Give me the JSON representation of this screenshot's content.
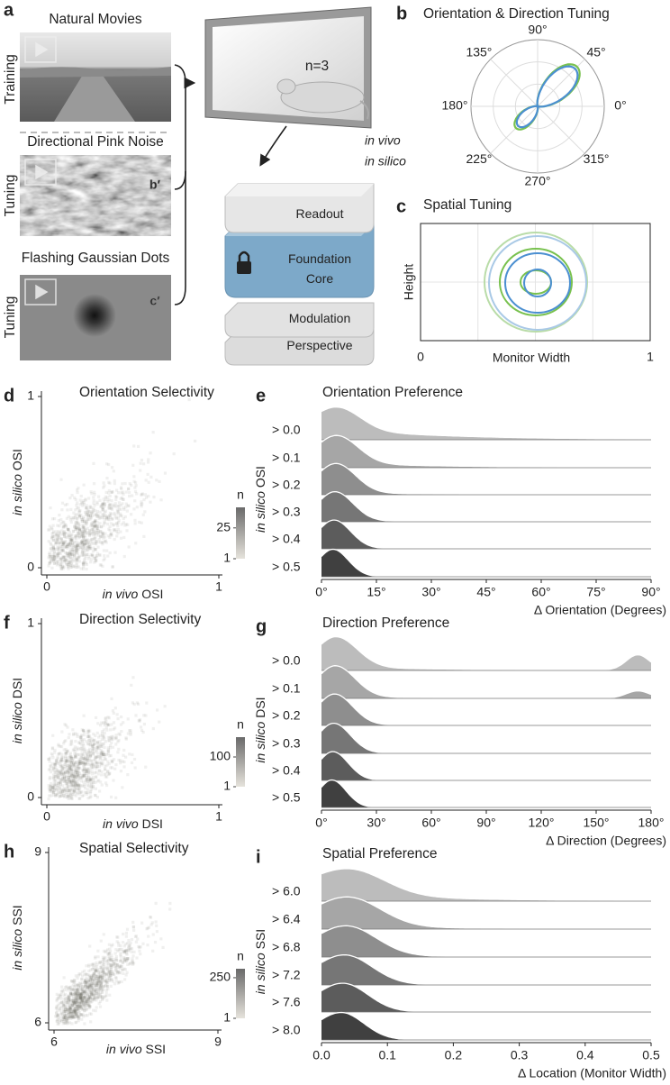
{
  "panel_a": {
    "letter": "a",
    "movies": [
      {
        "title": "Natural Movies",
        "side": "Training"
      },
      {
        "title": "Directional Pink Noise",
        "side": "Tuning",
        "tag": "b′"
      },
      {
        "title": "Flashing Gaussian Dots",
        "side": "Tuning",
        "tag": "c′"
      }
    ],
    "mouse_label": "n=3",
    "legend": [
      {
        "name": "in vivo",
        "color": "#78c14e"
      },
      {
        "name": "in silico",
        "color": "#4b8fd1"
      }
    ],
    "model_layers": [
      "Readout",
      "Foundation Core",
      "Modulation",
      "Perspective"
    ]
  },
  "panel_b": {
    "letter": "b",
    "title": "Orientation & Direction Tuning",
    "angle_ticks": [
      {
        "value": 90,
        "label": "90°"
      },
      {
        "value": 45,
        "label": "45°"
      },
      {
        "value": 0,
        "label": "0°"
      },
      {
        "value": 315,
        "label": "315°"
      },
      {
        "value": 270,
        "label": "270°"
      },
      {
        "value": 225,
        "label": "225°"
      },
      {
        "value": 180,
        "label": "180°"
      },
      {
        "value": 135,
        "label": "135°"
      }
    ]
  },
  "panel_c": {
    "letter": "c",
    "title": "Spatial Tuning",
    "ylabel": "Height",
    "xlabel": "Monitor Width",
    "xticks": [
      0,
      1
    ]
  },
  "chart_data": [
    {
      "type": "density",
      "letter": "d",
      "title": "Orientation Selectivity",
      "xlim": [
        0,
        1
      ],
      "ylim": [
        0,
        1
      ],
      "xticks": [
        0,
        1
      ],
      "yticks": [
        0,
        1
      ],
      "xlabel": [
        "in vivo",
        "OSI"
      ],
      "ylabel": [
        "in silico",
        "OSI"
      ],
      "colorbar": {
        "label": "n",
        "lim": [
          1,
          41
        ],
        "ticks": [
          1,
          25
        ]
      }
    },
    {
      "type": "ridgeline",
      "letter": "e",
      "title": "Orientation Preference",
      "categories": [
        "> 0.0",
        "> 0.1",
        "> 0.2",
        "> 0.3",
        "> 0.4",
        "> 0.5"
      ],
      "colors": [
        "#bcbcbc",
        "#a6a6a6",
        "#8e8e8e",
        "#767676",
        "#5c5c5c",
        "#404040"
      ],
      "xlim": [
        0,
        90
      ],
      "xticks": [
        {
          "value": 0,
          "label": "0°"
        },
        {
          "value": 15,
          "label": "15°"
        },
        {
          "value": 30,
          "label": "30°"
        },
        {
          "value": 45,
          "label": "45°"
        },
        {
          "value": 60,
          "label": "60°"
        },
        {
          "value": 75,
          "label": "75°"
        },
        {
          "value": 90,
          "label": "90°"
        }
      ],
      "xlabel": "Δ Orientation (Degrees)",
      "ylabel": [
        "in silico",
        "OSI"
      ]
    },
    {
      "type": "density",
      "letter": "f",
      "title": "Direction Selectivity",
      "xlim": [
        0,
        1
      ],
      "ylim": [
        0,
        1
      ],
      "xticks": [
        0,
        1
      ],
      "yticks": [
        0,
        1
      ],
      "xlabel": [
        "in vivo",
        "DSI"
      ],
      "ylabel": [
        "in silico",
        "DSI"
      ],
      "colorbar": {
        "label": "n",
        "lim": [
          1,
          166
        ],
        "ticks": [
          1,
          100
        ]
      }
    },
    {
      "type": "ridgeline",
      "letter": "g",
      "title": "Direction Preference",
      "categories": [
        "> 0.0",
        "> 0.1",
        "> 0.2",
        "> 0.3",
        "> 0.4",
        "> 0.5"
      ],
      "colors": [
        "#bcbcbc",
        "#a6a6a6",
        "#8e8e8e",
        "#767676",
        "#5c5c5c",
        "#404040"
      ],
      "xlim": [
        0,
        180
      ],
      "xticks": [
        {
          "value": 0,
          "label": "0°"
        },
        {
          "value": 30,
          "label": "30°"
        },
        {
          "value": 60,
          "label": "60°"
        },
        {
          "value": 90,
          "label": "90°"
        },
        {
          "value": 120,
          "label": "120°"
        },
        {
          "value": 150,
          "label": "150°"
        },
        {
          "value": 180,
          "label": "180°"
        }
      ],
      "xlabel": "Δ Direction (Degrees)",
      "ylabel": [
        "in silico",
        "DSI"
      ]
    },
    {
      "type": "density",
      "letter": "h",
      "title": "Spatial Selectivity",
      "xlim": [
        6,
        9
      ],
      "ylim": [
        6,
        9
      ],
      "xticks": [
        6,
        9
      ],
      "yticks": [
        6,
        9
      ],
      "xlabel": [
        "in vivo",
        "SSI"
      ],
      "ylabel": [
        "in silico",
        "SSI"
      ],
      "colorbar": {
        "label": "n",
        "lim": [
          1,
          305
        ],
        "ticks": [
          1,
          250
        ]
      }
    },
    {
      "type": "ridgeline",
      "letter": "i",
      "title": "Spatial Preference",
      "categories": [
        "> 6.0",
        "> 6.4",
        "> 6.8",
        "> 7.2",
        "> 7.6",
        "> 8.0"
      ],
      "colors": [
        "#bcbcbc",
        "#a6a6a6",
        "#8e8e8e",
        "#767676",
        "#5c5c5c",
        "#404040"
      ],
      "xlim": [
        0,
        0.5
      ],
      "xticks": [
        {
          "value": 0,
          "label": "0.0"
        },
        0.1,
        0.2,
        0.3,
        0.4,
        0.5
      ],
      "xlabel": "Δ Location (Monitor Width)",
      "ylabel": [
        "in silico",
        "SSI"
      ]
    }
  ]
}
